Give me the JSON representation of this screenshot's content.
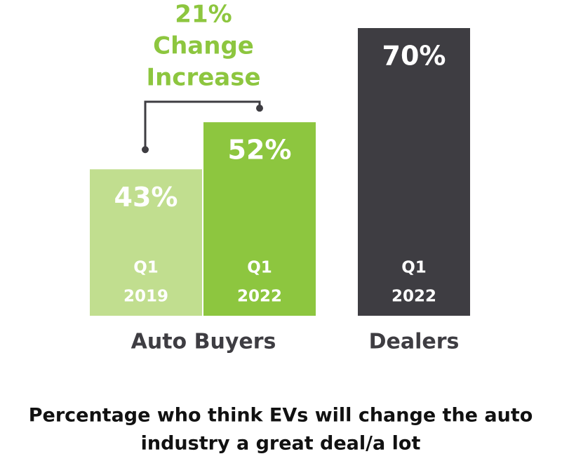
{
  "chart_data": {
    "type": "bar",
    "title": [
      "Percentage who think EVs will change the auto",
      "industry a great deal/a lot"
    ],
    "annotation": [
      "21%",
      "Change",
      "Increase"
    ],
    "categories": [
      [
        "Q1",
        "2019"
      ],
      [
        "Q1",
        "2022"
      ],
      [
        "Q1",
        "2022"
      ]
    ],
    "groups": [
      "Auto Buyers",
      "Dealers"
    ],
    "values": [
      43,
      52,
      70
    ],
    "value_labels": [
      "43%",
      "52%",
      "70%"
    ],
    "colors": [
      "#c1de8f",
      "#8dc63f",
      "#3e3d42"
    ],
    "annotation_color": "#8dc63f",
    "ylim": [
      15,
      70
    ]
  }
}
